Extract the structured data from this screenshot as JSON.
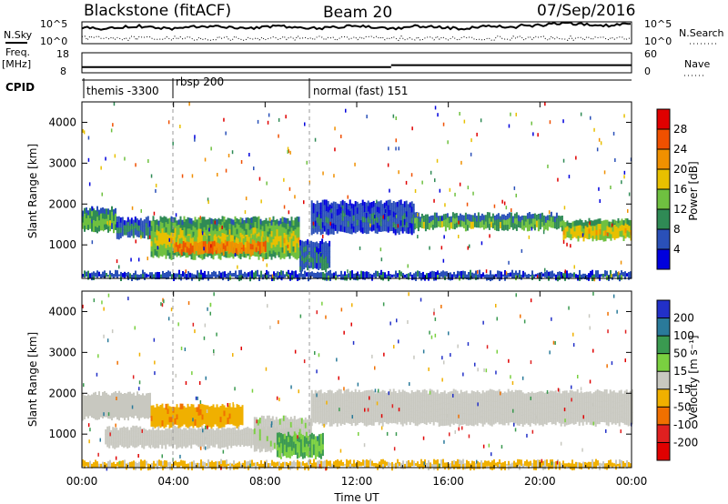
{
  "header": {
    "radar": "Blackstone (fitACF)",
    "beam": "Beam 20",
    "date": "07/Sep/2016"
  },
  "left_labels": {
    "nsky": "N.Sky",
    "freq": "Freq.",
    "freq_unit": "[MHz]",
    "cpid": "CPID"
  },
  "right_labels": {
    "nsearch": "N.Search",
    "nave": "Nave"
  },
  "noise_panel": {
    "left_ticks": [
      "10^5",
      "10^0"
    ],
    "right_ticks": [
      "10^5",
      "10^0"
    ]
  },
  "freq_panel": {
    "left_ticks": [
      "18",
      "8"
    ],
    "right_ticks": [
      "60",
      "0"
    ],
    "freq_levels": [
      {
        "t0": 0,
        "t1": 13.5,
        "mhz": 10.8
      },
      {
        "t0": 13.5,
        "t1": 24,
        "mhz": 11.8
      }
    ]
  },
  "cpid_panel": {
    "modes": [
      {
        "label": "themis -3300",
        "start_hour": 0.2
      },
      {
        "label": "rbsp 200",
        "start_hour": 4.0
      },
      {
        "label": "normal (fast) 151",
        "start_hour": 10.0
      }
    ]
  },
  "time_axis": {
    "label": "Time UT",
    "ticks": [
      "00:00",
      "04:00",
      "08:00",
      "12:00",
      "16:00",
      "20:00",
      "00:00"
    ],
    "range_hours": [
      0,
      24
    ]
  },
  "power_panel": {
    "ylabel": "Slant Range [km]",
    "colorbar_label": "Power [dB]",
    "colorbar_ticks": [
      "28",
      "24",
      "20",
      "16",
      "12",
      "8",
      "4"
    ],
    "colors": [
      "#0000dd",
      "#2a50b8",
      "#2f8a55",
      "#6fc040",
      "#e8c000",
      "#f09000",
      "#f05000",
      "#e00000"
    ]
  },
  "velocity_panel": {
    "ylabel": "Slant Range [km]",
    "colorbar_label": "Velocity [m s⁻¹]",
    "colorbar_ticks": [
      "200",
      "100",
      "50",
      "15",
      "-15",
      "-50",
      "-100",
      "-200"
    ],
    "colors": [
      "#2230c8",
      "#2a7a9a",
      "#3a9a50",
      "#7ad040",
      "#c8c8c0",
      "#f0b000",
      "#f07000",
      "#e02020",
      "#e00000"
    ]
  },
  "chart_data": {
    "type": "heatmap",
    "x_units": "hours UT",
    "y_units": "slant range km",
    "xlim": [
      0,
      24
    ],
    "ylim": [
      180,
      4500
    ],
    "yticks": [
      1000,
      2000,
      3000,
      4000
    ],
    "power_bands": [
      {
        "t0": 0.0,
        "t1": 1.5,
        "r0": 1350,
        "r1": 1900,
        "db": 14
      },
      {
        "t0": 1.5,
        "t1": 3.0,
        "r0": 1200,
        "r1": 1650,
        "db": 9
      },
      {
        "t0": 3.0,
        "t1": 9.5,
        "r0": 700,
        "r1": 1650,
        "db": 18
      },
      {
        "t0": 4.0,
        "t1": 8.0,
        "r0": 800,
        "r1": 1200,
        "db": 27
      },
      {
        "t0": 9.5,
        "t1": 10.8,
        "r0": 400,
        "r1": 1100,
        "db": 9
      },
      {
        "t0": 10.0,
        "t1": 14.5,
        "r0": 1300,
        "r1": 2050,
        "db": 7
      },
      {
        "t0": 14.5,
        "t1": 21.0,
        "r0": 1400,
        "r1": 1750,
        "db": 14
      },
      {
        "t0": 21.0,
        "t1": 24.0,
        "r0": 1150,
        "r1": 1600,
        "db": 20
      },
      {
        "t0": 0.0,
        "t1": 24.0,
        "r0": 180,
        "r1": 330,
        "db": 10
      }
    ],
    "velocity_bands": [
      {
        "t0": 0.0,
        "t1": 3.0,
        "r0": 1400,
        "r1": 2000,
        "v": 0
      },
      {
        "t0": 1.0,
        "t1": 9.5,
        "r0": 700,
        "r1": 1150,
        "v": 0
      },
      {
        "t0": 3.0,
        "t1": 7.0,
        "r0": 1200,
        "r1": 1700,
        "v": -40
      },
      {
        "t0": 7.5,
        "t1": 10.0,
        "r0": 600,
        "r1": 1400,
        "v": 5
      },
      {
        "t0": 8.5,
        "t1": 10.5,
        "r0": 450,
        "r1": 1000,
        "v": 30
      },
      {
        "t0": 10.0,
        "t1": 24.0,
        "r0": 1250,
        "r1": 2050,
        "v": 0
      },
      {
        "t0": 0.0,
        "t1": 24.0,
        "r0": 180,
        "r1": 330,
        "v": -20
      }
    ]
  }
}
